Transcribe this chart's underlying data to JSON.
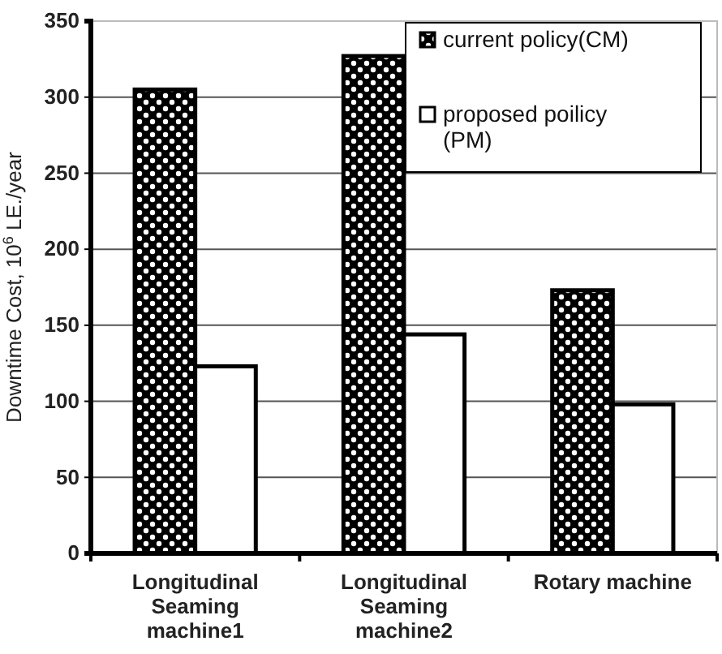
{
  "chart_data": {
    "type": "bar",
    "ylabel": "Downtime Cost, 10$^{6}$ LE./year",
    "categories": [
      "Longitudinal Seaming machine1",
      "Longitudinal Seaming machine2",
      "Rotary machine"
    ],
    "series": [
      {
        "name": "current policy(CM)",
        "color": "#000000",
        "values": [
          305,
          327,
          173
        ]
      },
      {
        "name": "proposed poilicy (PM)",
        "color": "#ffffff",
        "values": [
          123,
          144,
          98
        ]
      }
    ],
    "ylim": [
      0,
      350
    ],
    "yticks": [
      0,
      50,
      100,
      150,
      200,
      250,
      300,
      350
    ],
    "grid": "y",
    "legend": "top right"
  }
}
